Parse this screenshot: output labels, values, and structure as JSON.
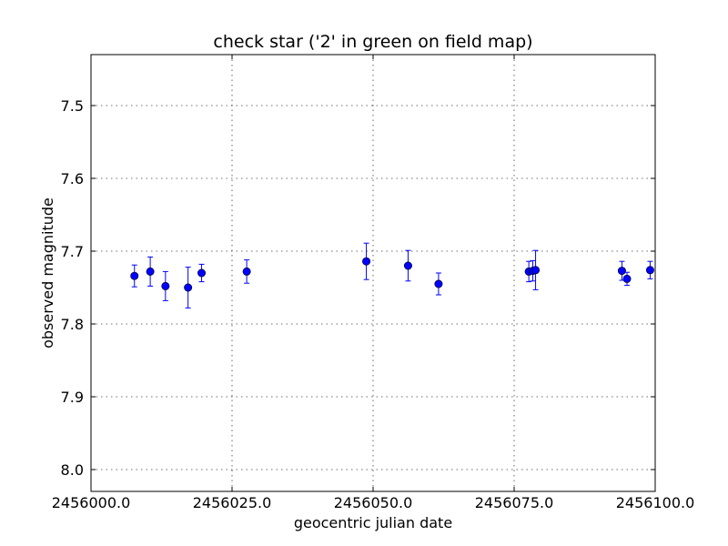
{
  "chart_data": {
    "type": "scatter",
    "title": "check star ('2' in green on field map)",
    "xlabel": "geocentric julian date",
    "ylabel": "observed magnitude",
    "xlim": [
      2456000.0,
      2456100.0
    ],
    "ylim": [
      8.03,
      7.43
    ],
    "y_inverted": true,
    "grid": true,
    "xticks": [
      2456000.0,
      2456025.0,
      2456050.0,
      2456075.0,
      2456100.0
    ],
    "xtick_labels": [
      "2456000.0",
      "2456025.0",
      "2456050.0",
      "2456075.0",
      "2456100.0"
    ],
    "yticks": [
      7.5,
      7.6,
      7.7,
      7.8,
      7.9,
      8.0
    ],
    "ytick_labels": [
      "7.5",
      "7.6",
      "7.7",
      "7.8",
      "7.9",
      "8.0"
    ],
    "marker_color": "#0000ff",
    "errorbar_color": "#0000ff",
    "series": [
      {
        "x": [
          2456007.7,
          2456010.5,
          2456013.2,
          2456017.2,
          2456019.6,
          2456027.6,
          2456048.8,
          2456056.2,
          2456061.6,
          2456077.6,
          2456078.3,
          2456078.8,
          2456094.1,
          2456095.0,
          2456099.1
        ],
        "y": [
          7.734,
          7.728,
          7.748,
          7.75,
          7.73,
          7.728,
          7.714,
          7.72,
          7.745,
          7.728,
          7.727,
          7.726,
          7.727,
          7.738,
          7.726
        ],
        "yerr": [
          0.015,
          0.02,
          0.02,
          0.028,
          0.012,
          0.016,
          0.025,
          0.021,
          0.015,
          0.014,
          0.014,
          0.027,
          0.013,
          0.009,
          0.012
        ]
      }
    ]
  }
}
